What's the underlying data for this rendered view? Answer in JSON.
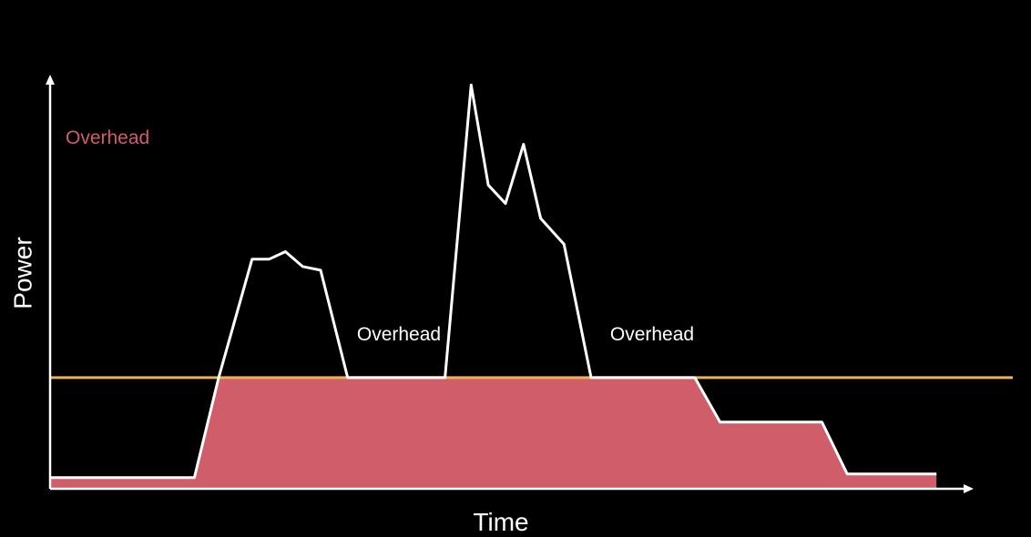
{
  "chart_data": {
    "type": "area",
    "title": "",
    "xlabel": "Time",
    "ylabel": "Power",
    "x_range": [
      0,
      100
    ],
    "y_range": [
      0,
      100
    ],
    "grid": false,
    "colors": {
      "background": "#000000",
      "axis": "#ffffff",
      "total_power_line": "#ffffff",
      "overhead_fill": "#d05d6a",
      "threshold_line": "#f0b34a",
      "overhead_label": "#d05d6a"
    },
    "threshold": 30,
    "total_power": {
      "x": [
        0,
        16,
        18.7,
        22.4,
        24.3,
        26.1,
        28,
        30,
        33,
        43.8,
        46.7,
        48.6,
        50.5,
        52.5,
        54.4,
        57,
        60,
        71.5,
        74.3,
        85.6,
        88.4,
        98.3
      ],
      "y": [
        3,
        3,
        30,
        62,
        62,
        64,
        60,
        59,
        30,
        30,
        109,
        82,
        77,
        93,
        73,
        66,
        30,
        30,
        18,
        18,
        4,
        4
      ]
    },
    "overhead_area": {
      "x": [
        0,
        16,
        18.7,
        71.5,
        74.3,
        85.6,
        88.4,
        98.3
      ],
      "y": [
        3,
        3,
        30,
        30,
        18,
        18,
        4,
        4
      ]
    },
    "annotations": {
      "legend_overhead": "Overhead",
      "overhead_1": "Overhead",
      "overhead_2": "Overhead"
    }
  }
}
